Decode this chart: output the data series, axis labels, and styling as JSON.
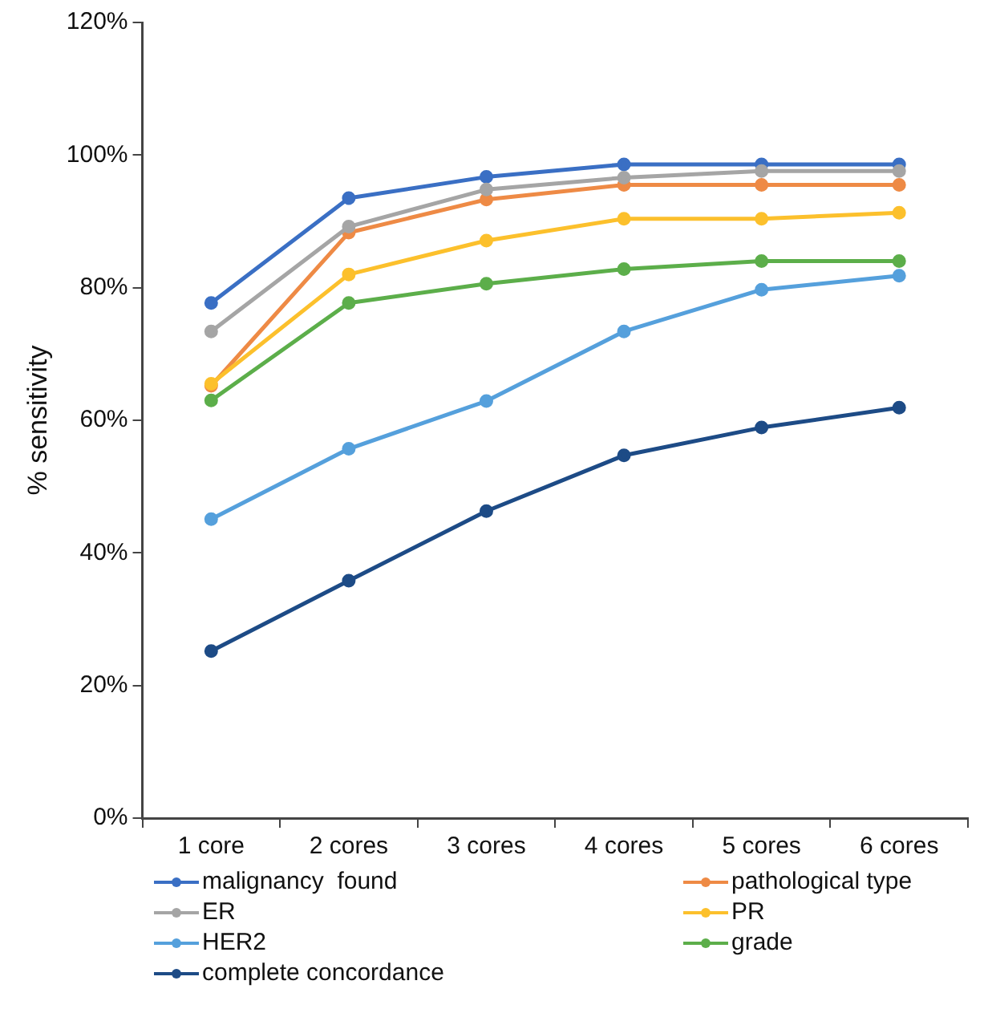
{
  "chart_data": {
    "type": "line",
    "ylabel": "% sensitivity",
    "categories": [
      "1 core",
      "2 cores",
      "3 cores",
      "4 cores",
      "5 cores",
      "6 cores"
    ],
    "ylim": [
      0,
      120
    ],
    "yticks": [
      {
        "value": 0,
        "label": "0%"
      },
      {
        "value": 20,
        "label": "20%"
      },
      {
        "value": 40,
        "label": "40%"
      },
      {
        "value": 60,
        "label": "60%"
      },
      {
        "value": 80,
        "label": "80%"
      },
      {
        "value": 100,
        "label": "100%"
      },
      {
        "value": 120,
        "label": "120%"
      }
    ],
    "grid": false,
    "legend": "bottom",
    "marker": "circle",
    "line_style": "solid",
    "series": [
      {
        "name": "malignancy  found",
        "color": "#3a6fc4",
        "values": [
          77.7,
          93.5,
          96.7,
          98.6,
          98.6,
          98.6
        ]
      },
      {
        "name": "pathological type",
        "color": "#ee8a45",
        "values": [
          65.2,
          88.3,
          93.3,
          95.5,
          95.5,
          95.5
        ]
      },
      {
        "name": "ER",
        "color": "#a5a5a5",
        "values": [
          73.4,
          89.2,
          94.8,
          96.6,
          97.6,
          97.6
        ]
      },
      {
        "name": "PR",
        "color": "#fcc02c",
        "values": [
          65.5,
          82,
          87.1,
          90.4,
          90.4,
          91.3
        ]
      },
      {
        "name": "HER2",
        "color": "#55a0dc",
        "values": [
          45.1,
          55.7,
          62.9,
          73.4,
          79.7,
          81.8
        ]
      },
      {
        "name": "grade",
        "color": "#5cae4a",
        "values": [
          63,
          77.7,
          80.6,
          82.8,
          84,
          84
        ]
      },
      {
        "name": "complete concordance",
        "color": "#1d4b86",
        "values": [
          25.2,
          35.8,
          46.3,
          54.7,
          58.9,
          61.9
        ]
      }
    ]
  }
}
